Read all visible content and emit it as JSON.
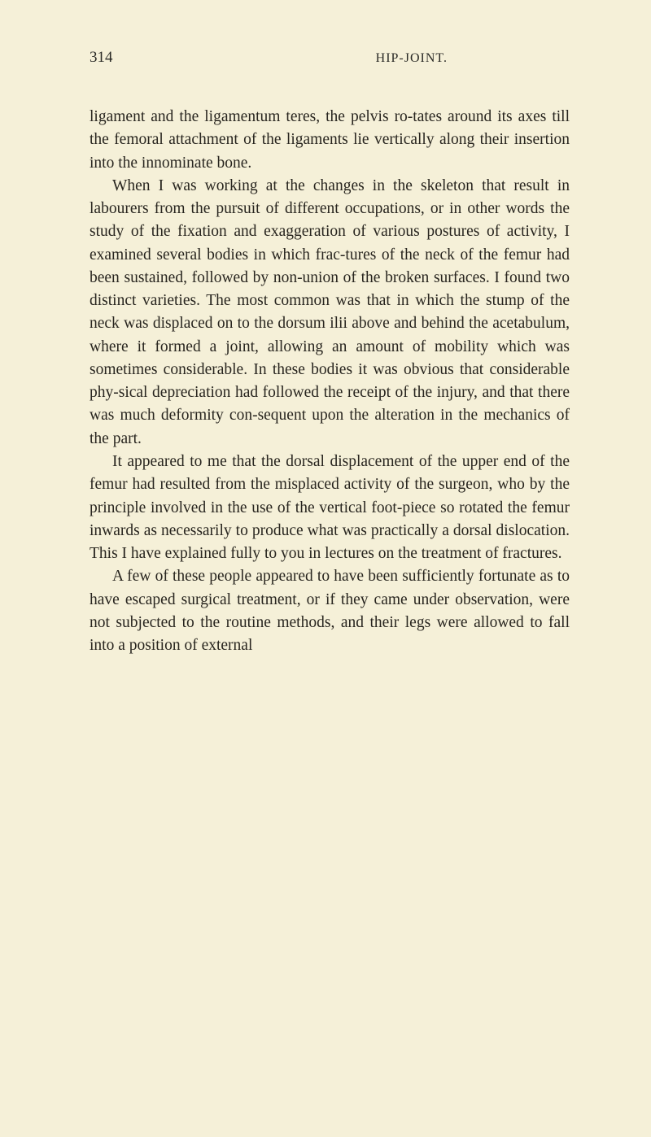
{
  "page": {
    "number": "314",
    "running_title": "HIP-JOINT.",
    "background_color": "#f5f0d8",
    "text_color": "#28251f",
    "font_family": "Georgia, Times New Roman, serif",
    "body_fontsize_pt": 15,
    "line_height": 1.45,
    "paragraphs": [
      "ligament and the ligamentum teres, the pelvis ro-tates around its axes till the femoral attachment of the ligaments lie vertically along their insertion into the innominate bone.",
      "When I was working at the changes in the skeleton that result in labourers from the pursuit of different occupations, or in other words the study of the fixation and exaggeration of various postures of activity, I examined several bodies in which frac-tures of the neck of the femur had been sustained, followed by non-union of the broken surfaces. I found two distinct varieties. The most common was that in which the stump of the neck was displaced on to the dorsum ilii above and behind the acetabulum, where it formed a joint, allowing an amount of mobility which was sometimes considerable. In these bodies it was obvious that considerable phy-sical depreciation had followed the receipt of the injury, and that there was much deformity con-sequent upon the alteration in the mechanics of the part.",
      "It appeared to me that the dorsal displacement of the upper end of the femur had resulted from the misplaced activity of the surgeon, who by the principle involved in the use of the vertical foot-piece so rotated the femur inwards as necessarily to produce what was practically a dorsal dislocation. This I have explained fully to you in lectures on the treatment of fractures.",
      "A few of these people appeared to have been sufficiently fortunate as to have escaped surgical treatment, or if they came under observation, were not subjected to the routine methods, and their legs were allowed to fall into a position of external"
    ]
  }
}
